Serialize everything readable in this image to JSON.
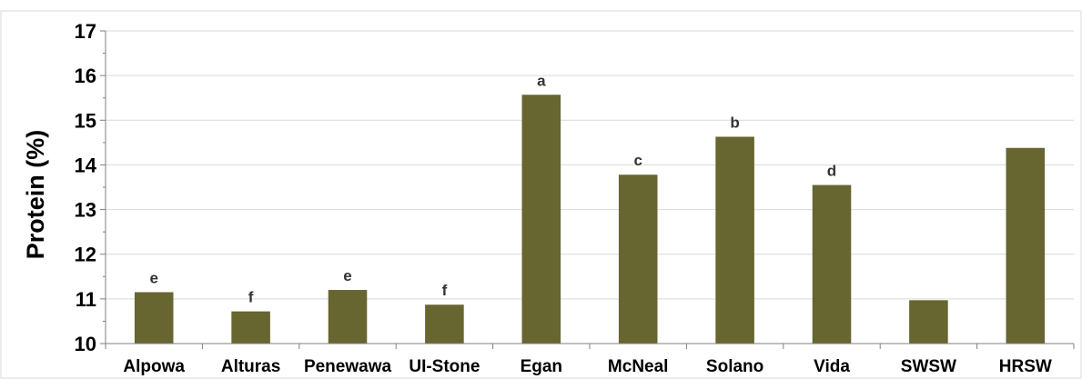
{
  "chart_data": {
    "type": "bar",
    "title": "",
    "xlabel": "",
    "ylabel": "Protein (%)",
    "ylim": [
      10,
      17
    ],
    "yticks": [
      10,
      11,
      12,
      13,
      14,
      15,
      16,
      17
    ],
    "grid": true,
    "legend": "none",
    "bar_color": "#676530",
    "categories": [
      "Alpowa",
      "Alturas",
      "Penewawa",
      "UI-Stone",
      "Egan",
      "McNeal",
      "Solano",
      "Vida",
      "SWSW",
      "HRSW"
    ],
    "values": [
      11.15,
      10.72,
      11.2,
      10.87,
      15.57,
      13.78,
      14.63,
      13.55,
      10.97,
      14.38
    ],
    "significance_letters": [
      "e",
      "f",
      "e",
      "f",
      "a",
      "c",
      "b",
      "d",
      "",
      ""
    ]
  }
}
